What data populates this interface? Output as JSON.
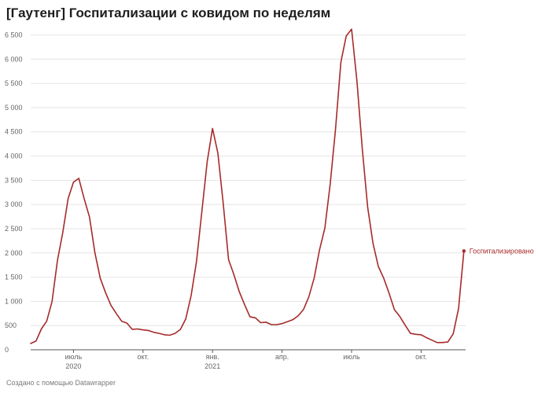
{
  "title": "[Гаутенг] Госпитализации с ковидом по неделям",
  "credit": "Создано с помощью Datawrapper",
  "colors": {
    "series": "#a62a2a",
    "grid": "#e4e4e4",
    "text": "#1d1d1d"
  },
  "chart_data": {
    "type": "line",
    "title": "[Гаутенг] Госпитализации с ковидом по неделям",
    "xlabel": "",
    "ylabel": "",
    "ylim": [
      0,
      6500
    ],
    "y_ticks": [
      0,
      500,
      1000,
      1500,
      2000,
      2500,
      3000,
      3500,
      4000,
      4500,
      5000,
      5500,
      6000,
      6500
    ],
    "y_tick_labels": [
      "0",
      "500",
      "1 000",
      "1 500",
      "2 000",
      "2 500",
      "3 000",
      "3 500",
      "4 000",
      "4 500",
      "5 000",
      "5 500",
      "6 000",
      "6 500"
    ],
    "x_ticks": [
      {
        "week": 8,
        "label": "июль",
        "sublabel": "2020"
      },
      {
        "week": 21,
        "label": "окт.",
        "sublabel": ""
      },
      {
        "week": 34,
        "label": "янв.",
        "sublabel": "2021"
      },
      {
        "week": 47,
        "label": "апр.",
        "sublabel": ""
      },
      {
        "week": 60,
        "label": "июль",
        "sublabel": ""
      },
      {
        "week": 73,
        "label": "окт.",
        "sublabel": ""
      }
    ],
    "grid": true,
    "series": [
      {
        "name": "Госпитализировано",
        "label_position": "end-right",
        "values": [
          130,
          180,
          430,
          590,
          1000,
          1840,
          2420,
          3120,
          3460,
          3540,
          3120,
          2740,
          2010,
          1480,
          1180,
          920,
          750,
          590,
          550,
          420,
          430,
          410,
          400,
          360,
          340,
          310,
          300,
          340,
          420,
          640,
          1120,
          1820,
          2850,
          3880,
          4570,
          4060,
          3020,
          1860,
          1550,
          1200,
          930,
          680,
          660,
          560,
          570,
          520,
          520,
          540,
          580,
          620,
          700,
          830,
          1090,
          1480,
          2060,
          2510,
          3420,
          4560,
          5940,
          6480,
          6620,
          5550,
          4150,
          2950,
          2200,
          1720,
          1480,
          1170,
          830,
          690,
          510,
          340,
          320,
          310,
          250,
          200,
          150,
          150,
          160,
          330,
          850,
          2040
        ]
      }
    ]
  }
}
